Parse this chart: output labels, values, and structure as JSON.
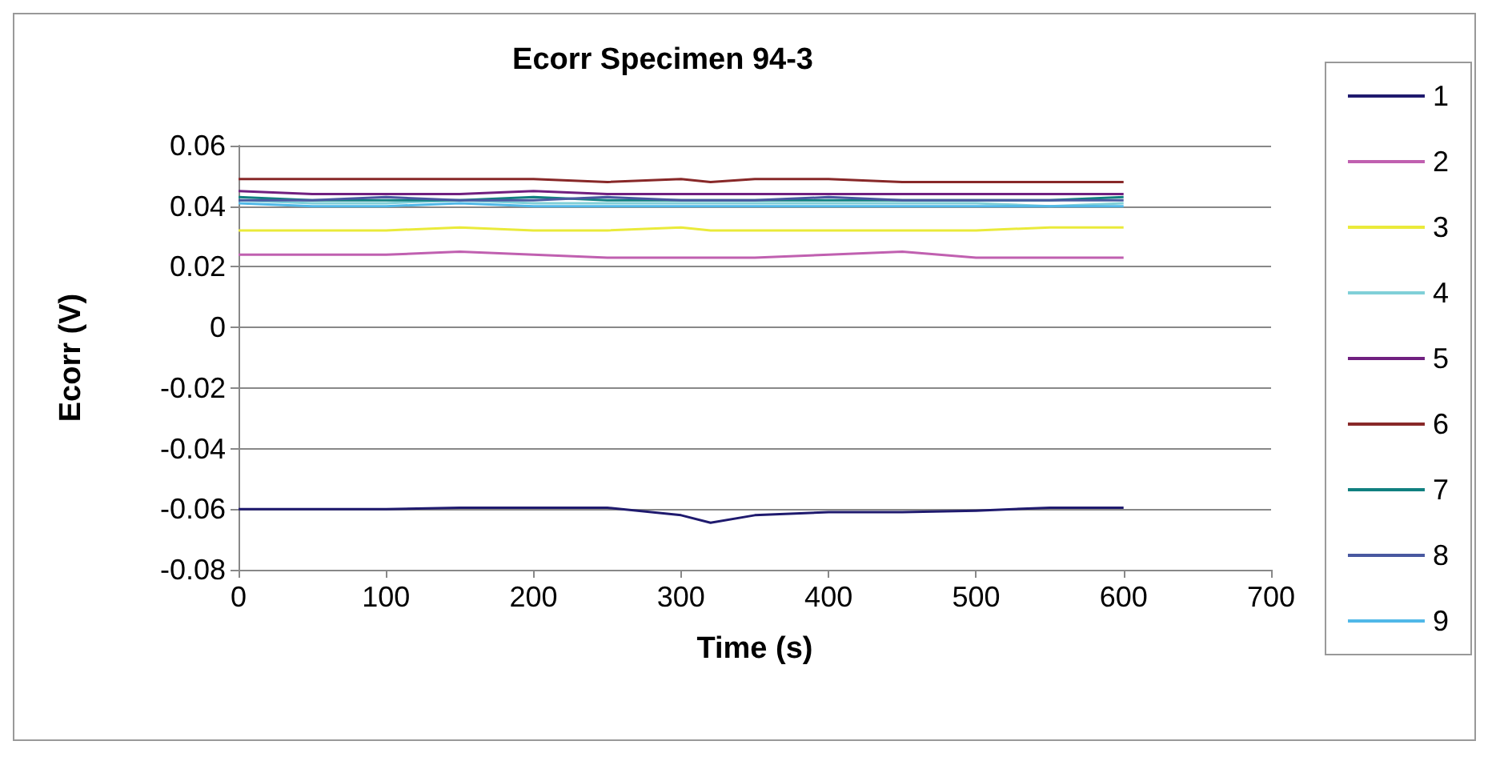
{
  "chart_data": {
    "type": "line",
    "title": "Ecorr Specimen 94-3",
    "xlabel": "Time (s)",
    "ylabel": "Ecorr (V)",
    "x": [
      0,
      50,
      100,
      150,
      200,
      250,
      300,
      320,
      350,
      400,
      450,
      500,
      550,
      600
    ],
    "series": [
      {
        "name": "1",
        "color": "#1f1a6e",
        "values": [
          -0.06,
          -0.06,
          -0.06,
          -0.0595,
          -0.0595,
          -0.0595,
          -0.062,
          -0.0645,
          -0.062,
          -0.061,
          -0.061,
          -0.0605,
          -0.0595,
          -0.0595
        ]
      },
      {
        "name": "2",
        "color": "#c060b0",
        "values": [
          0.024,
          0.024,
          0.024,
          0.025,
          0.024,
          0.023,
          0.023,
          0.023,
          0.023,
          0.024,
          0.025,
          0.023,
          0.023,
          0.023
        ]
      },
      {
        "name": "3",
        "color": "#eaea3a",
        "values": [
          0.032,
          0.032,
          0.032,
          0.033,
          0.032,
          0.032,
          0.033,
          0.032,
          0.032,
          0.032,
          0.032,
          0.032,
          0.033,
          0.033
        ]
      },
      {
        "name": "4",
        "color": "#80d0d8",
        "values": [
          0.042,
          0.041,
          0.041,
          0.042,
          0.041,
          0.041,
          0.041,
          0.041,
          0.041,
          0.041,
          0.041,
          0.041,
          0.04,
          0.041
        ]
      },
      {
        "name": "5",
        "color": "#702080",
        "values": [
          0.045,
          0.044,
          0.044,
          0.044,
          0.045,
          0.044,
          0.044,
          0.044,
          0.044,
          0.044,
          0.044,
          0.044,
          0.044,
          0.044
        ]
      },
      {
        "name": "6",
        "color": "#882828",
        "values": [
          0.049,
          0.049,
          0.049,
          0.049,
          0.049,
          0.048,
          0.049,
          0.048,
          0.049,
          0.049,
          0.048,
          0.048,
          0.048,
          0.048
        ]
      },
      {
        "name": "7",
        "color": "#108080",
        "values": [
          0.043,
          0.042,
          0.042,
          0.042,
          0.043,
          0.042,
          0.042,
          0.042,
          0.042,
          0.042,
          0.042,
          0.042,
          0.042,
          0.043
        ]
      },
      {
        "name": "8",
        "color": "#4858a0",
        "values": [
          0.042,
          0.042,
          0.043,
          0.042,
          0.042,
          0.043,
          0.042,
          0.042,
          0.042,
          0.043,
          0.042,
          0.042,
          0.042,
          0.042
        ]
      },
      {
        "name": "9",
        "color": "#50b8e8",
        "values": [
          0.041,
          0.04,
          0.04,
          0.041,
          0.04,
          0.04,
          0.04,
          0.04,
          0.04,
          0.04,
          0.04,
          0.04,
          0.04,
          0.04
        ]
      }
    ],
    "xlim": [
      0,
      700
    ],
    "xticks": [
      0,
      100,
      200,
      300,
      400,
      500,
      600,
      700
    ],
    "ylim": [
      -0.08,
      0.06
    ],
    "yticks": [
      -0.08,
      -0.06,
      -0.04,
      -0.02,
      0,
      0.02,
      0.04,
      0.06
    ],
    "grid": "y",
    "legend": "right",
    "marker": "none",
    "line_style": "solid"
  }
}
